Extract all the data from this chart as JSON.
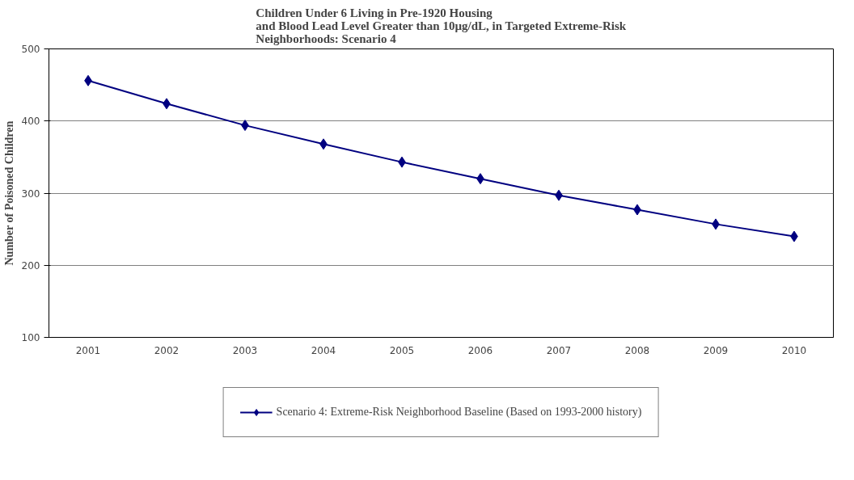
{
  "chart_data": {
    "type": "line",
    "title": "Children Under 6 Living in Pre-1920 Housing\nand Blood Lead Level Greater than 10µg/dL, in Targeted Extreme-Risk\nNeighborhoods: Scenario 4",
    "ylabel": "Number of Poisoned Children",
    "categories": [
      "2001",
      "2002",
      "2003",
      "2004",
      "2005",
      "2006",
      "2007",
      "2008",
      "2009",
      "2010"
    ],
    "series": [
      {
        "name": "Scenario 4: Extreme-Risk Neighborhood Baseline (Based on 1993-2000 history)",
        "color": "#000080",
        "values": [
          456,
          424,
          394,
          368,
          343,
          320,
          297,
          277,
          257,
          240
        ]
      }
    ],
    "ylim": [
      100,
      500
    ],
    "yticks": [
      100,
      200,
      300,
      400,
      500
    ],
    "grid": "y",
    "legend": "bottom",
    "marker": "diamond",
    "line_style": "solid"
  }
}
